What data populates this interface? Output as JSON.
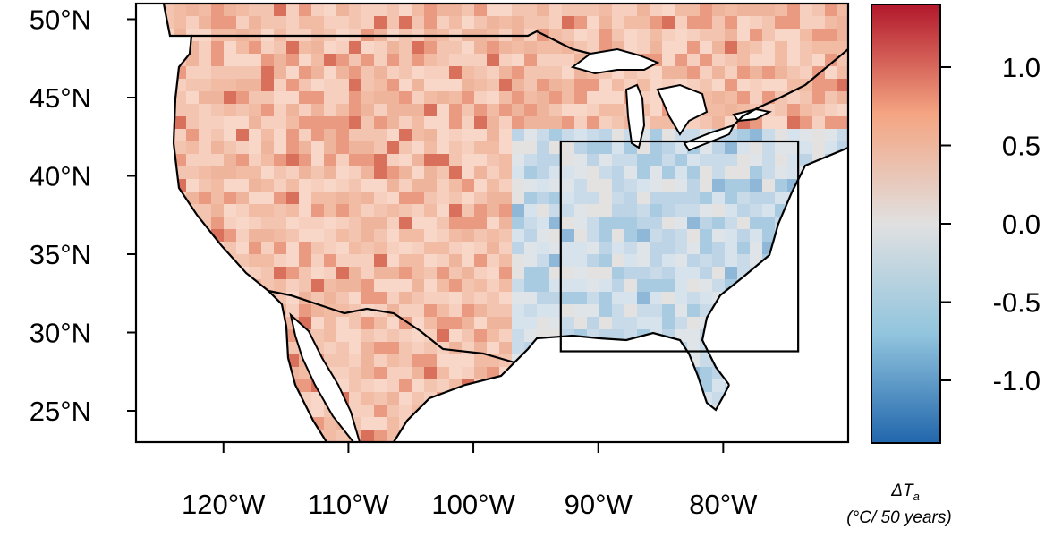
{
  "map": {
    "lat_labels": [
      "50°N",
      "45°N",
      "40°N",
      "35°N",
      "30°N",
      "25°N"
    ],
    "lon_labels": [
      "120°W",
      "110°W",
      "100°W",
      "90°W",
      "80°W"
    ],
    "lat_values": [
      50,
      45,
      40,
      35,
      30,
      25
    ],
    "lon_values": [
      -120,
      -110,
      -100,
      -90,
      -80
    ],
    "extent": {
      "lon_min": -127,
      "lon_max": -70,
      "lat_min": 23,
      "lat_max": 51
    },
    "region_box": {
      "lon_min": -93,
      "lon_max": -74,
      "lat_min": 28.8,
      "lat_max": 42.2
    }
  },
  "legend": {
    "ticks": [
      "1.0",
      "0.5",
      "0.0",
      "-0.5",
      "-1.0"
    ],
    "tick_values": [
      1.0,
      0.5,
      0.0,
      -0.5,
      -1.0
    ],
    "range": [
      -1.4,
      1.4
    ],
    "title_symbol": "ΔT",
    "title_subscript": "a",
    "units": "(°C/ 50 years)",
    "colors": {
      "low": "#2166ac",
      "mid_low": "#92c5de",
      "mid": "#e0e0e0",
      "mid_high": "#f4a582",
      "high": "#b2182b"
    }
  },
  "colors": {
    "land_base": "#f3c7b6",
    "east_base": "#d9e2ea",
    "water": "#ffffff",
    "coast": "#000000"
  }
}
